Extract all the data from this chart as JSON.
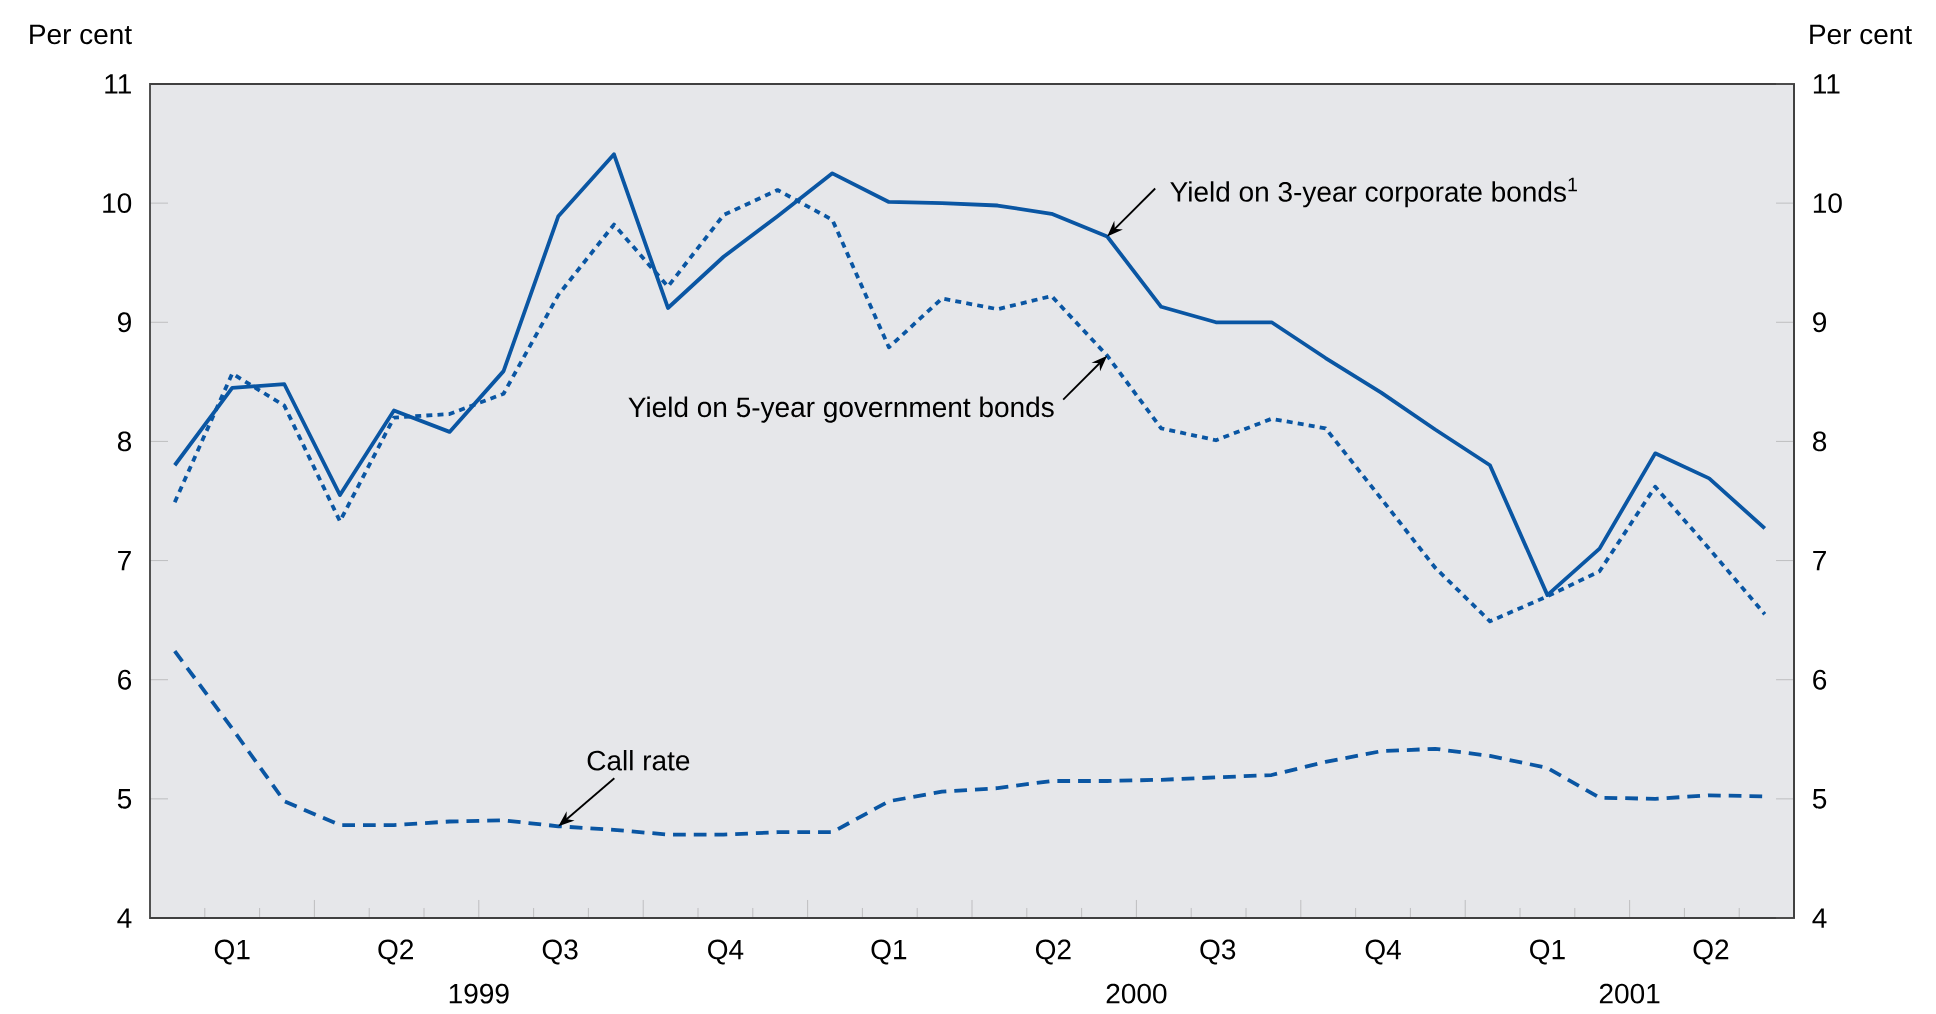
{
  "chart_data": {
    "type": "line",
    "ylabel": "Per cent",
    "y2label": "Per cent",
    "x": [
      "1999-01-15",
      "1999-02-15",
      "1999-03-15",
      "1999-04-15",
      "1999-05-15",
      "1999-06-15",
      "1999-07-15",
      "1999-08-15",
      "1999-09-15",
      "1999-10-15",
      "1999-11-15",
      "1999-12-15",
      "2000-01-15",
      "2000-02-15",
      "2000-03-15",
      "2000-04-15",
      "2000-05-15",
      "2000-06-15",
      "2000-07-15",
      "2000-08-15",
      "2000-09-15",
      "2000-10-15",
      "2000-11-15",
      "2000-12-15",
      "2001-01-15",
      "2001-02-15",
      "2001-03-15",
      "2001-04-15",
      "2001-05-15",
      "2001-06-15"
    ],
    "series": [
      {
        "name": "Yield on 3-year corporate bonds$^{1}$",
        "color": "#0a56a3",
        "line_style": "solid",
        "values": [
          7.8,
          8.45,
          8.48,
          7.55,
          8.26,
          8.08,
          8.59,
          9.89,
          10.41,
          9.12,
          9.55,
          9.89,
          10.25,
          10.01,
          10.0,
          9.98,
          9.91,
          9.72,
          9.13,
          9.0,
          9.0,
          8.7,
          8.41,
          8.1,
          7.8,
          6.71,
          7.1,
          7.9,
          7.69,
          7.27
        ]
      },
      {
        "name": "Yield on 5-year government bonds",
        "color": "#0a56a3",
        "line_style": "dotted",
        "values": [
          7.49,
          8.57,
          8.3,
          7.33,
          8.2,
          8.23,
          8.4,
          9.23,
          9.82,
          9.3,
          9.9,
          10.11,
          9.86,
          8.79,
          9.2,
          9.11,
          9.22,
          8.72,
          8.11,
          8.01,
          8.19,
          8.11,
          7.52,
          6.94,
          6.49,
          6.7,
          6.91,
          7.62,
          7.1,
          6.55
        ]
      },
      {
        "name": "Call rate",
        "color": "#0a56a3",
        "line_style": "dashed",
        "values": [
          6.24,
          5.59,
          4.98,
          4.78,
          4.78,
          4.81,
          4.82,
          4.77,
          4.74,
          4.7,
          4.7,
          4.72,
          4.72,
          4.98,
          5.06,
          5.09,
          5.15,
          5.15,
          5.16,
          5.18,
          5.2,
          5.31,
          5.4,
          5.42,
          5.36,
          5.26,
          5.01,
          5.0,
          5.03,
          5.02
        ]
      }
    ],
    "xlim": [
      "1999-01-01",
      "2001-07-01"
    ],
    "xticks": [
      {
        "value": "1999-02-01",
        "label": null
      },
      {
        "value": "1999-03-01",
        "label": null
      },
      {
        "value": "1999-04-01",
        "label": null
      },
      {
        "value": "1999-05-01",
        "label": null
      },
      {
        "value": "1999-06-01",
        "label": null
      },
      {
        "value": "1999-07-01",
        "label": null
      },
      {
        "value": "1999-08-01",
        "label": null
      },
      {
        "value": "1999-09-01",
        "label": null
      },
      {
        "value": "1999-10-01",
        "label": null
      },
      {
        "value": "1999-11-01",
        "label": null
      },
      {
        "value": "1999-12-01",
        "label": null
      },
      {
        "value": "2000-01-01",
        "label": null
      },
      {
        "value": "2000-02-01",
        "label": null
      },
      {
        "value": "2000-03-01",
        "label": null
      },
      {
        "value": "2000-04-01",
        "label": null
      },
      {
        "value": "2000-05-01",
        "label": null
      },
      {
        "value": "2000-06-01",
        "label": null
      },
      {
        "value": "2000-07-01",
        "label": null
      },
      {
        "value": "2000-08-01",
        "label": null
      },
      {
        "value": "2000-09-01",
        "label": null
      },
      {
        "value": "2000-10-01",
        "label": null
      },
      {
        "value": "2000-11-01",
        "label": null
      },
      {
        "value": "2000-12-01",
        "label": null
      },
      {
        "value": "2001-01-01",
        "label": null
      },
      {
        "value": "2001-02-01",
        "label": null
      },
      {
        "value": "2001-03-01",
        "label": null
      },
      {
        "value": "2001-04-01",
        "label": null
      },
      {
        "value": "2001-05-01",
        "label": null
      },
      {
        "value": "2001-06-01",
        "label": null
      },
      {
        "value": "1999-02-15",
        "label": "Q1"
      },
      {
        "value": "1999-05-16",
        "label": "Q2"
      },
      {
        "value": "1999-08-16",
        "label": "Q3"
      },
      {
        "value": "1999-11-16",
        "label": "Q4"
      },
      {
        "value": "2000-02-15",
        "label": "Q1"
      },
      {
        "value": "2000-05-16",
        "label": "Q2"
      },
      {
        "value": "2000-08-16",
        "label": "Q3"
      },
      {
        "value": "2000-11-16",
        "label": "Q4"
      },
      {
        "value": "2001-02-15",
        "label": "Q1"
      },
      {
        "value": "2001-05-16",
        "label": "Q2"
      }
    ],
    "x2lim": [
      "1999-01-01",
      "2001-07-01"
    ],
    "x2ticks": [
      {
        "value": "1999-07-01",
        "label": "1999"
      },
      {
        "value": "2000-07-01",
        "label": "2000"
      },
      {
        "value": "2001-04-01",
        "label": "2001"
      }
    ],
    "ylim": [
      4,
      11
    ],
    "yticks": [
      4,
      5,
      6,
      7,
      8,
      9,
      10,
      11
    ],
    "y2lim": [
      4,
      11
    ],
    "y2ticks": [
      4,
      5,
      6,
      7,
      8,
      9,
      10,
      11
    ]
  }
}
